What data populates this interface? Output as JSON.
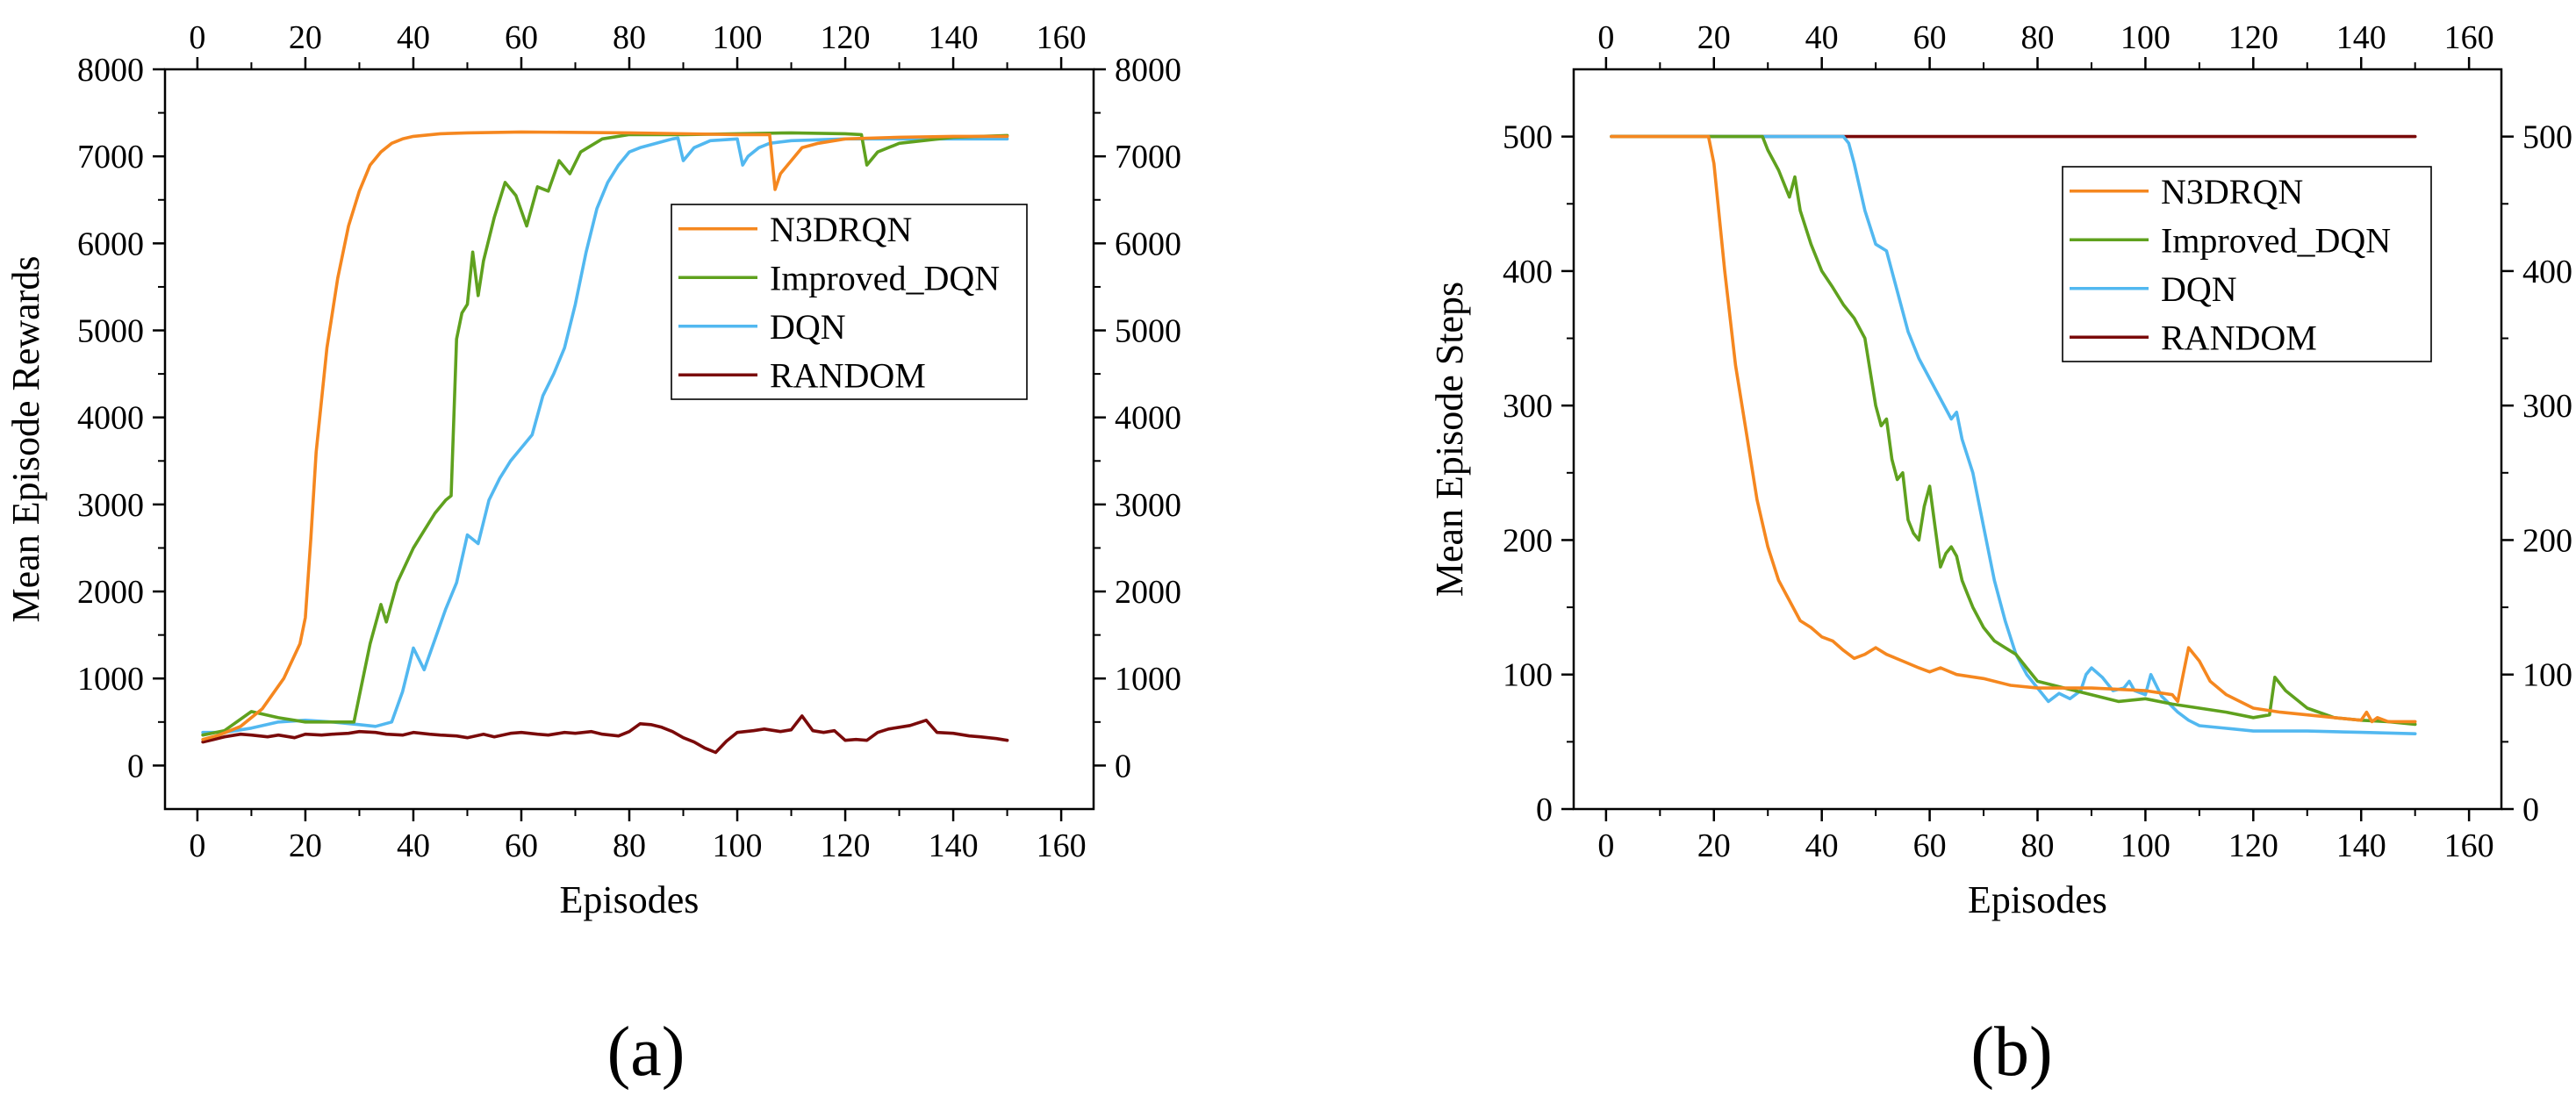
{
  "colors": {
    "n3drqn": "#F5871F",
    "improved_dqn": "#5FA11E",
    "dqn": "#52B8F0",
    "random": "#7A0A0A"
  },
  "chart_data": [
    {
      "type": "line",
      "panel_label": "(a)",
      "xlabel": "Episodes",
      "ylabel": "Mean Episode Rewards",
      "xlim": [
        -6,
        166
      ],
      "ylim": [
        -500,
        8000
      ],
      "xticks": [
        0,
        20,
        40,
        60,
        80,
        100,
        120,
        140,
        160
      ],
      "yticks": [
        0,
        1000,
        2000,
        3000,
        4000,
        5000,
        6000,
        7000,
        8000
      ],
      "legend_position": "upper-right",
      "series": [
        {
          "name": "N3DRQN",
          "color_key": "n3drqn",
          "x": [
            1,
            4,
            8,
            12,
            16,
            19,
            20,
            21,
            22,
            24,
            26,
            28,
            30,
            32,
            34,
            36,
            38,
            40,
            45,
            50,
            60,
            80,
            100,
            106,
            107,
            108,
            110,
            112,
            115,
            120,
            130,
            140,
            150
          ],
          "y": [
            300,
            350,
            450,
            650,
            1000,
            1400,
            1700,
            2600,
            3600,
            4800,
            5600,
            6200,
            6600,
            6900,
            7050,
            7150,
            7200,
            7230,
            7260,
            7270,
            7280,
            7270,
            7250,
            7250,
            6620,
            6800,
            6950,
            7100,
            7150,
            7200,
            7220,
            7230,
            7230
          ]
        },
        {
          "name": "Improved_DQN",
          "color_key": "improved_dqn",
          "x": [
            1,
            5,
            10,
            15,
            20,
            25,
            29,
            30,
            32,
            34,
            35,
            37,
            40,
            42,
            44,
            46,
            47,
            48,
            49,
            50,
            51,
            52,
            53,
            55,
            57,
            59,
            61,
            63,
            65,
            67,
            69,
            71,
            75,
            80,
            90,
            100,
            110,
            120,
            123,
            124,
            126,
            130,
            140,
            150
          ],
          "y": [
            350,
            400,
            620,
            550,
            500,
            500,
            500,
            800,
            1400,
            1850,
            1650,
            2100,
            2500,
            2700,
            2900,
            3050,
            3100,
            4900,
            5200,
            5300,
            5900,
            5400,
            5800,
            6300,
            6700,
            6550,
            6200,
            6650,
            6600,
            6950,
            6800,
            7050,
            7200,
            7250,
            7250,
            7260,
            7270,
            7260,
            7250,
            6900,
            7050,
            7150,
            7220,
            7240
          ]
        },
        {
          "name": "DQN",
          "color_key": "dqn",
          "x": [
            1,
            5,
            10,
            15,
            20,
            25,
            30,
            33,
            36,
            38,
            40,
            42,
            44,
            46,
            48,
            50,
            52,
            54,
            56,
            58,
            60,
            62,
            64,
            66,
            68,
            70,
            72,
            74,
            76,
            78,
            80,
            82,
            85,
            88,
            89,
            90,
            92,
            95,
            100,
            101,
            102,
            104,
            106,
            110,
            120,
            130,
            140,
            150
          ],
          "y": [
            380,
            380,
            430,
            500,
            520,
            500,
            470,
            450,
            500,
            850,
            1350,
            1100,
            1450,
            1800,
            2100,
            2650,
            2550,
            3050,
            3300,
            3500,
            3650,
            3800,
            4250,
            4500,
            4800,
            5300,
            5900,
            6400,
            6700,
            6900,
            7050,
            7100,
            7150,
            7200,
            7210,
            6950,
            7100,
            7180,
            7200,
            6900,
            7000,
            7100,
            7150,
            7180,
            7200,
            7200,
            7200,
            7200
          ]
        },
        {
          "name": "RANDOM",
          "color_key": "random",
          "x": [
            1,
            3,
            5,
            8,
            10,
            13,
            15,
            18,
            20,
            23,
            25,
            28,
            30,
            33,
            35,
            38,
            40,
            43,
            45,
            48,
            50,
            53,
            55,
            58,
            60,
            63,
            65,
            68,
            70,
            73,
            75,
            78,
            80,
            82,
            84,
            86,
            88,
            90,
            92,
            94,
            96,
            98,
            100,
            103,
            105,
            108,
            110,
            112,
            114,
            116,
            118,
            120,
            122,
            124,
            126,
            128,
            130,
            132,
            135,
            137,
            140,
            143,
            145,
            148,
            150
          ],
          "y": [
            270,
            300,
            330,
            360,
            350,
            330,
            350,
            320,
            360,
            350,
            360,
            370,
            390,
            380,
            360,
            350,
            380,
            360,
            350,
            340,
            320,
            360,
            330,
            370,
            380,
            360,
            350,
            380,
            370,
            390,
            360,
            340,
            390,
            480,
            470,
            440,
            390,
            320,
            270,
            200,
            150,
            280,
            380,
            400,
            420,
            390,
            410,
            570,
            400,
            380,
            400,
            290,
            300,
            290,
            380,
            420,
            440,
            460,
            520,
            380,
            370,
            340,
            330,
            310,
            290
          ]
        }
      ]
    },
    {
      "type": "line",
      "panel_label": "(b)",
      "xlabel": "Episodes",
      "ylabel": "Mean Episode Steps",
      "xlim": [
        -6,
        166
      ],
      "ylim": [
        0,
        550
      ],
      "xticks": [
        0,
        20,
        40,
        60,
        80,
        100,
        120,
        140,
        160
      ],
      "yticks": [
        0,
        100,
        200,
        300,
        400,
        500
      ],
      "legend_position": "upper-right",
      "series": [
        {
          "name": "N3DRQN",
          "color_key": "n3drqn",
          "x": [
            1,
            19,
            20,
            22,
            24,
            26,
            28,
            30,
            32,
            34,
            36,
            38,
            40,
            42,
            44,
            46,
            48,
            50,
            52,
            55,
            58,
            60,
            62,
            65,
            70,
            75,
            80,
            90,
            100,
            105,
            106,
            107,
            108,
            110,
            112,
            115,
            120,
            125,
            130,
            135,
            140,
            141,
            142,
            143,
            145,
            150
          ],
          "y": [
            500,
            500,
            480,
            400,
            330,
            280,
            230,
            195,
            170,
            155,
            140,
            135,
            128,
            125,
            118,
            112,
            115,
            120,
            115,
            110,
            105,
            102,
            105,
            100,
            97,
            92,
            90,
            90,
            88,
            85,
            80,
            100,
            120,
            110,
            95,
            85,
            75,
            72,
            70,
            68,
            66,
            72,
            65,
            68,
            65,
            65
          ]
        },
        {
          "name": "Improved_DQN",
          "color_key": "improved_dqn",
          "x": [
            1,
            29,
            30,
            32,
            34,
            35,
            36,
            38,
            40,
            42,
            44,
            46,
            48,
            50,
            51,
            52,
            53,
            54,
            55,
            56,
            57,
            58,
            59,
            60,
            61,
            62,
            63,
            64,
            65,
            66,
            67,
            68,
            70,
            72,
            74,
            76,
            78,
            80,
            85,
            90,
            95,
            100,
            105,
            110,
            115,
            120,
            123,
            124,
            126,
            130,
            135,
            140,
            145,
            150
          ],
          "y": [
            500,
            500,
            490,
            475,
            455,
            470,
            445,
            420,
            400,
            388,
            375,
            365,
            350,
            300,
            285,
            290,
            260,
            245,
            250,
            215,
            205,
            200,
            225,
            240,
            210,
            180,
            190,
            195,
            188,
            170,
            160,
            150,
            135,
            125,
            120,
            115,
            105,
            95,
            90,
            85,
            80,
            82,
            78,
            75,
            72,
            68,
            70,
            98,
            88,
            75,
            68,
            66,
            65,
            63
          ]
        },
        {
          "name": "DQN",
          "color_key": "dqn",
          "x": [
            1,
            44,
            45,
            46,
            48,
            50,
            52,
            54,
            56,
            58,
            60,
            62,
            64,
            65,
            66,
            68,
            70,
            72,
            74,
            76,
            78,
            80,
            82,
            84,
            86,
            88,
            89,
            90,
            92,
            94,
            96,
            97,
            98,
            100,
            101,
            102,
            103,
            104,
            105,
            106,
            108,
            110,
            115,
            120,
            130,
            140,
            150
          ],
          "y": [
            500,
            500,
            495,
            480,
            445,
            420,
            415,
            385,
            355,
            335,
            320,
            305,
            290,
            295,
            275,
            250,
            210,
            170,
            140,
            115,
            100,
            90,
            80,
            86,
            82,
            88,
            100,
            105,
            98,
            88,
            90,
            95,
            88,
            85,
            100,
            92,
            84,
            80,
            76,
            72,
            66,
            62,
            60,
            58,
            58,
            57,
            56
          ]
        },
        {
          "name": "RANDOM",
          "color_key": "random",
          "x": [
            1,
            150
          ],
          "y": [
            500,
            500
          ]
        }
      ]
    }
  ]
}
